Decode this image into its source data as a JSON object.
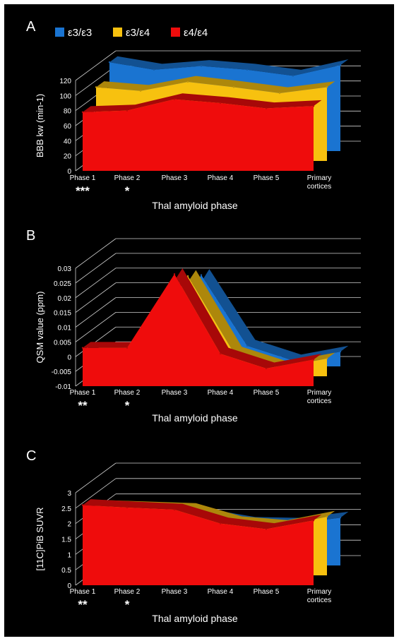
{
  "colors": {
    "e33": "#1a74d1",
    "e34": "#f7c10f",
    "e44": "#ef0c0c",
    "background": "#000000",
    "text": "#ffffff",
    "grid": "#cfcfcf"
  },
  "legend": {
    "placement": "top",
    "items": [
      {
        "key": "e33",
        "label": "ε3/ε3"
      },
      {
        "key": "e34",
        "label": "ε3/ε4"
      },
      {
        "key": "e44",
        "label": "ε4/ε4"
      }
    ]
  },
  "categories": [
    "Phase 1",
    "Phase 2",
    "Phase 3",
    "Phase 4",
    "Phase 5",
    "Primary cortices"
  ],
  "xlabel": "Thal amyloid phase",
  "chart_data": [
    {
      "panel": "A",
      "type": "area",
      "ylabel": "BBB kw (min-1)",
      "ylim": [
        0,
        120
      ],
      "yticks": [
        "0",
        "20",
        "40",
        "60",
        "80",
        "100",
        "120"
      ],
      "significance": [
        "***",
        "*",
        "",
        "",
        "",
        ""
      ],
      "series": [
        {
          "name": "ε4/ε4",
          "key": "e44",
          "values": [
            78,
            80,
            95,
            90,
            83,
            86
          ]
        },
        {
          "name": "ε3/ε4",
          "key": "e34",
          "values": [
            98,
            93,
            105,
            98,
            90,
            98
          ]
        },
        {
          "name": "ε3/ε3",
          "key": "e33",
          "values": [
            118,
            108,
            113,
            108,
            100,
            114
          ]
        }
      ]
    },
    {
      "panel": "B",
      "type": "area",
      "ylabel": "QSM value (ppm)",
      "ylim": [
        -0.01,
        0.03
      ],
      "yticks": [
        "-0.01",
        "-0.005",
        "0",
        "0.005",
        "0.01",
        "0.015",
        "0.02",
        "0.025",
        "0.03"
      ],
      "significance": [
        "**",
        "*",
        "",
        "",
        "",
        ""
      ],
      "series": [
        {
          "name": "ε3/ε3",
          "key": "e33",
          "values": [
            -0.005,
            -0.005,
            0.021,
            -0.003,
            -0.008,
            -0.005
          ]
        },
        {
          "name": "ε3/ε4",
          "key": "e34",
          "values": [
            -0.001,
            0.0,
            0.024,
            -0.002,
            -0.007,
            -0.004
          ]
        },
        {
          "name": "ε4/ε4",
          "key": "e44",
          "values": [
            0.003,
            0.003,
            0.028,
            0.001,
            -0.004,
            -0.001
          ]
        }
      ]
    },
    {
      "panel": "C",
      "type": "area",
      "ylabel": "[11C]PiB SUVR",
      "ylim": [
        0,
        3
      ],
      "yticks": [
        "0",
        "0.5",
        "1",
        "1.5",
        "2",
        "2.5",
        "3"
      ],
      "significance": [
        "**",
        "*",
        "",
        "",
        "",
        ""
      ],
      "series": [
        {
          "name": "ε3/ε3",
          "key": "e33",
          "values": [
            1.65,
            1.65,
            1.63,
            1.38,
            1.35,
            1.55
          ]
        },
        {
          "name": "ε3/ε4",
          "key": "e34",
          "values": [
            2.25,
            2.2,
            2.15,
            1.72,
            1.6,
            1.9
          ]
        },
        {
          "name": "ε4/ε4",
          "key": "e44",
          "values": [
            2.6,
            2.52,
            2.45,
            2.0,
            1.82,
            2.1
          ]
        }
      ]
    }
  ]
}
